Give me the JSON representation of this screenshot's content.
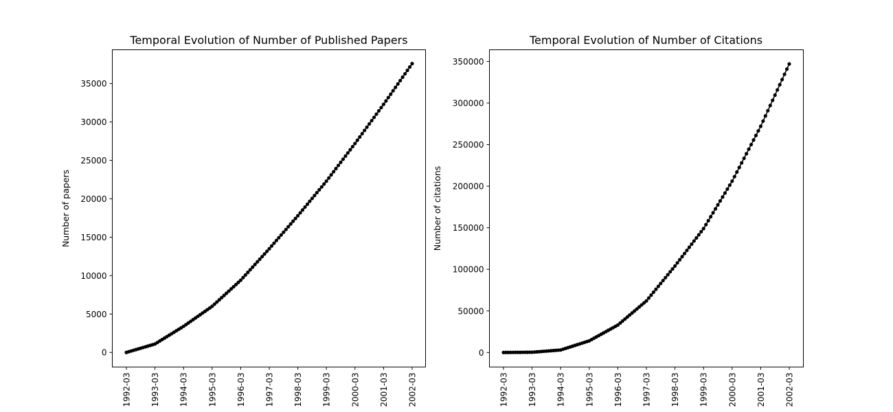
{
  "chart_data": [
    {
      "type": "line",
      "title": "Temporal Evolution of Number of Published Papers",
      "xlabel": "",
      "ylabel": "Number of papers",
      "x_ticks": [
        "1992-03",
        "1993-03",
        "1994-03",
        "1995-03",
        "1996-03",
        "1997-03",
        "1998-03",
        "1999-03",
        "2000-03",
        "2001-03",
        "2002-03"
      ],
      "y_ticks": [
        0,
        5000,
        10000,
        15000,
        20000,
        25000,
        30000,
        35000
      ],
      "ylim": [
        -1900,
        39400
      ],
      "grid": false,
      "marker_color": "#000000",
      "series": [
        {
          "x": [
            "1992-03",
            "1993-03",
            "1994-03",
            "1995-03",
            "1996-03",
            "1997-03",
            "1998-03",
            "1999-03",
            "2000-03",
            "2001-03",
            "2002-03"
          ],
          "y": [
            0,
            1100,
            3400,
            6000,
            9400,
            13500,
            17800,
            22300,
            27200,
            32300,
            37600
          ]
        }
      ]
    },
    {
      "type": "line",
      "title": "Temporal Evolution of Number of Citations",
      "xlabel": "",
      "ylabel": "Number of citations",
      "x_ticks": [
        "1992-03",
        "1993-03",
        "1994-03",
        "1995-03",
        "1996-03",
        "1997-03",
        "1998-03",
        "1999-03",
        "2000-03",
        "2001-03",
        "2002-03"
      ],
      "y_ticks": [
        0,
        50000,
        100000,
        150000,
        200000,
        250000,
        300000,
        350000
      ],
      "ylim": [
        -17500,
        364000
      ],
      "grid": false,
      "marker_color": "#000000",
      "series": [
        {
          "x": [
            "1992-03",
            "1993-03",
            "1994-03",
            "1995-03",
            "1996-03",
            "1997-03",
            "1998-03",
            "1999-03",
            "2000-03",
            "2001-03",
            "2002-03"
          ],
          "y": [
            0,
            300,
            3000,
            14000,
            33000,
            62000,
            104000,
            149000,
            206000,
            272000,
            347000
          ]
        }
      ]
    }
  ]
}
